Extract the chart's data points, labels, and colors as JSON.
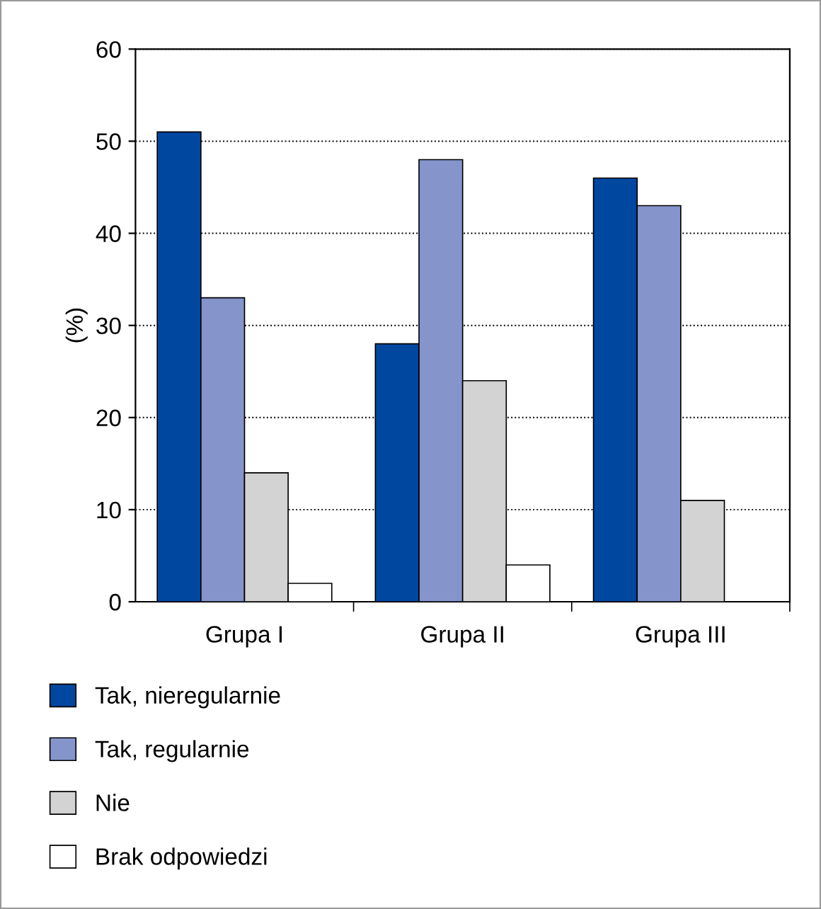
{
  "chart_data": {
    "type": "bar",
    "ylabel": "(%)",
    "categories": [
      "Grupa I",
      "Grupa II",
      "Grupa III"
    ],
    "series": [
      {
        "name": "Tak, nieregularnie",
        "color": "#0047a0",
        "values": [
          51,
          28,
          46
        ]
      },
      {
        "name": "Tak, regularnie",
        "color": "#8595cc",
        "values": [
          33,
          48,
          43
        ]
      },
      {
        "name": "Nie",
        "color": "#d3d3d3",
        "values": [
          14,
          24,
          11
        ]
      },
      {
        "name": "Brak odpowiedzi",
        "color": "#ffffff",
        "values": [
          2,
          4,
          0
        ]
      }
    ],
    "ylim": [
      0,
      60
    ],
    "yticks": [
      0,
      10,
      20,
      30,
      40,
      50,
      60
    ],
    "grid": "y",
    "legend": "bottom"
  }
}
